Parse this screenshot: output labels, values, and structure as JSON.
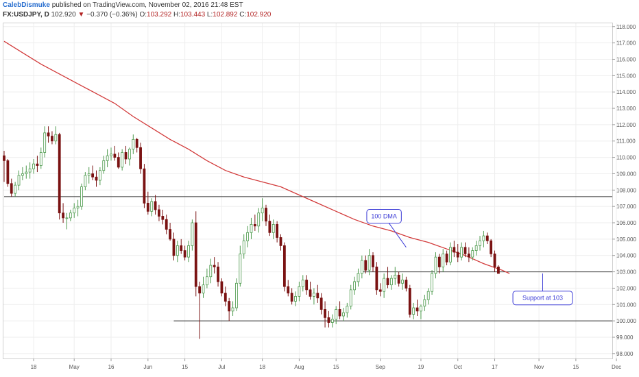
{
  "header": {
    "author": "CalebDismuke",
    "published": "published on TradingView.com, November 02, 2016 21:48 EST",
    "symbol": "FX:USDJPY, D",
    "last": "102.920",
    "change": "−0.370 (−0.36%)",
    "o_label": "O:",
    "o": "103.292",
    "h_label": "H:",
    "h": "103.443",
    "l_label": "L:",
    "l": "102.892",
    "c_label": "C:",
    "c": "102.920"
  },
  "colors": {
    "up": "#4c9a4c",
    "down": "#7a1212",
    "ma": "#d23a3a",
    "annotation": "#3b3bd6",
    "hline": "#333333"
  },
  "chart_data": {
    "type": "candlestick",
    "ylim": [
      97.7,
      118.2
    ],
    "y_ticks": [
      98,
      99,
      100,
      101,
      102,
      103,
      104,
      105,
      106,
      107,
      108,
      109,
      110,
      111,
      112,
      113,
      114,
      115,
      116,
      117,
      118
    ],
    "x_tick_labels": [
      {
        "label": "18",
        "x": 8
      },
      {
        "label": "May",
        "x": 19
      },
      {
        "label": "16",
        "x": 29
      },
      {
        "label": "Jun",
        "x": 39
      },
      {
        "label": "15",
        "x": 49
      },
      {
        "label": "Jul",
        "x": 59
      },
      {
        "label": "18",
        "x": 70
      },
      {
        "label": "Aug",
        "x": 80
      },
      {
        "label": "15",
        "x": 90
      },
      {
        "label": "Sep",
        "x": 102
      },
      {
        "label": "19",
        "x": 113
      },
      {
        "label": "Oct",
        "x": 123
      },
      {
        "label": "17",
        "x": 133
      },
      {
        "label": "Nov",
        "x": 145
      },
      {
        "label": "15",
        "x": 155
      },
      {
        "label": "Dec",
        "x": 166
      }
    ],
    "candles": [
      {
        "o": 110.1,
        "h": 110.4,
        "l": 108.5,
        "c": 109.8
      },
      {
        "o": 109.8,
        "h": 109.9,
        "l": 108.2,
        "c": 108.4
      },
      {
        "o": 108.4,
        "h": 108.7,
        "l": 107.6,
        "c": 107.8
      },
      {
        "o": 107.8,
        "h": 108.5,
        "l": 107.6,
        "c": 108.3
      },
      {
        "o": 108.3,
        "h": 109.2,
        "l": 108.0,
        "c": 108.9
      },
      {
        "o": 108.9,
        "h": 109.4,
        "l": 108.6,
        "c": 109.0
      },
      {
        "o": 109.0,
        "h": 109.5,
        "l": 108.7,
        "c": 109.1
      },
      {
        "o": 109.1,
        "h": 109.7,
        "l": 108.7,
        "c": 109.3
      },
      {
        "o": 109.3,
        "h": 109.9,
        "l": 109.0,
        "c": 109.6
      },
      {
        "o": 109.6,
        "h": 110.1,
        "l": 109.1,
        "c": 109.5
      },
      {
        "o": 109.5,
        "h": 110.6,
        "l": 109.3,
        "c": 110.3
      },
      {
        "o": 110.3,
        "h": 111.9,
        "l": 110.0,
        "c": 111.5
      },
      {
        "o": 111.5,
        "h": 111.9,
        "l": 110.9,
        "c": 111.3
      },
      {
        "o": 111.3,
        "h": 111.6,
        "l": 110.8,
        "c": 111.0
      },
      {
        "o": 111.0,
        "h": 111.9,
        "l": 110.8,
        "c": 111.4
      },
      {
        "o": 111.4,
        "h": 111.5,
        "l": 106.2,
        "c": 106.6
      },
      {
        "o": 106.6,
        "h": 107.2,
        "l": 106.0,
        "c": 106.3
      },
      {
        "o": 106.3,
        "h": 106.6,
        "l": 105.6,
        "c": 106.3
      },
      {
        "o": 106.3,
        "h": 106.8,
        "l": 106.1,
        "c": 106.6
      },
      {
        "o": 106.6,
        "h": 107.2,
        "l": 106.3,
        "c": 106.9
      },
      {
        "o": 106.9,
        "h": 107.4,
        "l": 106.4,
        "c": 107.0
      },
      {
        "o": 107.0,
        "h": 108.4,
        "l": 106.8,
        "c": 108.2
      },
      {
        "o": 108.2,
        "h": 109.1,
        "l": 108.0,
        "c": 108.9
      },
      {
        "o": 108.9,
        "h": 109.4,
        "l": 108.4,
        "c": 109.0
      },
      {
        "o": 109.0,
        "h": 109.5,
        "l": 108.6,
        "c": 108.8
      },
      {
        "o": 108.8,
        "h": 109.2,
        "l": 108.2,
        "c": 108.6
      },
      {
        "o": 108.6,
        "h": 109.4,
        "l": 108.3,
        "c": 109.2
      },
      {
        "o": 109.2,
        "h": 110.1,
        "l": 109.0,
        "c": 109.8
      },
      {
        "o": 109.8,
        "h": 110.5,
        "l": 109.4,
        "c": 110.1
      },
      {
        "o": 110.1,
        "h": 110.6,
        "l": 109.8,
        "c": 110.2
      },
      {
        "o": 110.2,
        "h": 110.7,
        "l": 109.8,
        "c": 110.0
      },
      {
        "o": 110.0,
        "h": 110.3,
        "l": 109.3,
        "c": 109.4
      },
      {
        "o": 109.4,
        "h": 110.5,
        "l": 109.2,
        "c": 110.3
      },
      {
        "o": 110.3,
        "h": 110.7,
        "l": 109.6,
        "c": 109.9
      },
      {
        "o": 109.9,
        "h": 110.6,
        "l": 109.5,
        "c": 110.5
      },
      {
        "o": 110.5,
        "h": 111.4,
        "l": 110.2,
        "c": 111.1
      },
      {
        "o": 111.1,
        "h": 111.2,
        "l": 110.3,
        "c": 110.6
      },
      {
        "o": 110.6,
        "h": 110.9,
        "l": 109.0,
        "c": 109.3
      },
      {
        "o": 109.3,
        "h": 109.6,
        "l": 106.9,
        "c": 107.2
      },
      {
        "o": 107.2,
        "h": 107.9,
        "l": 106.5,
        "c": 106.7
      },
      {
        "o": 106.7,
        "h": 107.5,
        "l": 106.4,
        "c": 107.3
      },
      {
        "o": 107.3,
        "h": 107.7,
        "l": 106.5,
        "c": 106.8
      },
      {
        "o": 106.8,
        "h": 107.1,
        "l": 106.1,
        "c": 106.4
      },
      {
        "o": 106.4,
        "h": 106.8,
        "l": 105.9,
        "c": 106.2
      },
      {
        "o": 106.2,
        "h": 106.5,
        "l": 105.3,
        "c": 105.6
      },
      {
        "o": 105.6,
        "h": 106.0,
        "l": 104.9,
        "c": 105.0
      },
      {
        "o": 105.0,
        "h": 105.4,
        "l": 103.7,
        "c": 104.0
      },
      {
        "o": 104.0,
        "h": 104.9,
        "l": 103.6,
        "c": 104.6
      },
      {
        "o": 104.6,
        "h": 105.0,
        "l": 104.1,
        "c": 104.3
      },
      {
        "o": 104.3,
        "h": 104.6,
        "l": 103.7,
        "c": 103.9
      },
      {
        "o": 103.9,
        "h": 104.9,
        "l": 103.6,
        "c": 104.6
      },
      {
        "o": 104.6,
        "h": 106.2,
        "l": 104.3,
        "c": 106.0
      },
      {
        "o": 106.0,
        "h": 106.7,
        "l": 101.5,
        "c": 102.1
      },
      {
        "o": 102.1,
        "h": 102.4,
        "l": 98.9,
        "c": 101.7
      },
      {
        "o": 101.7,
        "h": 102.7,
        "l": 101.4,
        "c": 102.2
      },
      {
        "o": 102.2,
        "h": 103.2,
        "l": 102.0,
        "c": 102.7
      },
      {
        "o": 102.7,
        "h": 103.8,
        "l": 102.3,
        "c": 103.4
      },
      {
        "o": 103.4,
        "h": 103.9,
        "l": 102.9,
        "c": 103.3
      },
      {
        "o": 103.3,
        "h": 103.6,
        "l": 102.1,
        "c": 102.4
      },
      {
        "o": 102.4,
        "h": 102.6,
        "l": 101.5,
        "c": 101.7
      },
      {
        "o": 101.7,
        "h": 102.1,
        "l": 100.9,
        "c": 101.2
      },
      {
        "o": 101.2,
        "h": 101.4,
        "l": 100.0,
        "c": 100.6
      },
      {
        "o": 100.6,
        "h": 101.2,
        "l": 100.3,
        "c": 100.8
      },
      {
        "o": 100.8,
        "h": 102.6,
        "l": 100.6,
        "c": 102.3
      },
      {
        "o": 102.3,
        "h": 104.6,
        "l": 102.1,
        "c": 104.1
      },
      {
        "o": 104.1,
        "h": 105.3,
        "l": 103.8,
        "c": 104.9
      },
      {
        "o": 104.9,
        "h": 105.8,
        "l": 104.5,
        "c": 105.4
      },
      {
        "o": 105.4,
        "h": 106.3,
        "l": 105.0,
        "c": 105.9
      },
      {
        "o": 105.9,
        "h": 106.5,
        "l": 105.5,
        "c": 105.8
      },
      {
        "o": 105.8,
        "h": 106.9,
        "l": 105.4,
        "c": 106.6
      },
      {
        "o": 106.6,
        "h": 107.5,
        "l": 106.1,
        "c": 106.9
      },
      {
        "o": 106.9,
        "h": 107.1,
        "l": 105.8,
        "c": 106.1
      },
      {
        "o": 106.1,
        "h": 106.5,
        "l": 105.2,
        "c": 105.4
      },
      {
        "o": 105.4,
        "h": 106.2,
        "l": 105.0,
        "c": 105.9
      },
      {
        "o": 105.9,
        "h": 106.1,
        "l": 104.8,
        "c": 105.1
      },
      {
        "o": 105.1,
        "h": 105.3,
        "l": 104.3,
        "c": 104.6
      },
      {
        "o": 104.6,
        "h": 104.8,
        "l": 101.8,
        "c": 102.1
      },
      {
        "o": 102.1,
        "h": 102.5,
        "l": 101.5,
        "c": 101.7
      },
      {
        "o": 101.7,
        "h": 102.0,
        "l": 101.0,
        "c": 101.2
      },
      {
        "o": 101.2,
        "h": 101.8,
        "l": 100.9,
        "c": 101.5
      },
      {
        "o": 101.5,
        "h": 102.4,
        "l": 101.2,
        "c": 102.1
      },
      {
        "o": 102.1,
        "h": 102.8,
        "l": 101.8,
        "c": 102.5
      },
      {
        "o": 102.5,
        "h": 102.8,
        "l": 101.6,
        "c": 101.9
      },
      {
        "o": 101.9,
        "h": 102.4,
        "l": 101.3,
        "c": 101.5
      },
      {
        "o": 101.5,
        "h": 102.0,
        "l": 101.0,
        "c": 101.7
      },
      {
        "o": 101.7,
        "h": 102.2,
        "l": 101.1,
        "c": 101.4
      },
      {
        "o": 101.4,
        "h": 101.7,
        "l": 100.4,
        "c": 100.7
      },
      {
        "o": 100.7,
        "h": 101.2,
        "l": 99.6,
        "c": 100.2
      },
      {
        "o": 100.2,
        "h": 100.6,
        "l": 99.6,
        "c": 99.9
      },
      {
        "o": 99.9,
        "h": 100.4,
        "l": 99.6,
        "c": 100.1
      },
      {
        "o": 100.1,
        "h": 100.9,
        "l": 99.8,
        "c": 100.7
      },
      {
        "o": 100.7,
        "h": 101.2,
        "l": 100.1,
        "c": 100.3
      },
      {
        "o": 100.3,
        "h": 100.8,
        "l": 100.0,
        "c": 100.5
      },
      {
        "o": 100.5,
        "h": 101.1,
        "l": 100.2,
        "c": 100.9
      },
      {
        "o": 100.9,
        "h": 102.2,
        "l": 100.7,
        "c": 101.9
      },
      {
        "o": 101.9,
        "h": 102.7,
        "l": 101.6,
        "c": 102.4
      },
      {
        "o": 102.4,
        "h": 103.2,
        "l": 102.1,
        "c": 102.9
      },
      {
        "o": 102.9,
        "h": 104.0,
        "l": 102.6,
        "c": 103.7
      },
      {
        "o": 103.7,
        "h": 104.0,
        "l": 102.9,
        "c": 103.1
      },
      {
        "o": 103.1,
        "h": 104.4,
        "l": 102.8,
        "c": 104.0
      },
      {
        "o": 104.0,
        "h": 104.2,
        "l": 103.0,
        "c": 103.3
      },
      {
        "o": 103.3,
        "h": 103.6,
        "l": 101.6,
        "c": 101.9
      },
      {
        "o": 101.9,
        "h": 102.3,
        "l": 101.5,
        "c": 101.8
      },
      {
        "o": 101.8,
        "h": 102.9,
        "l": 101.4,
        "c": 102.6
      },
      {
        "o": 102.6,
        "h": 103.3,
        "l": 102.0,
        "c": 102.2
      },
      {
        "o": 102.2,
        "h": 102.8,
        "l": 101.9,
        "c": 102.6
      },
      {
        "o": 102.6,
        "h": 103.3,
        "l": 102.2,
        "c": 102.8
      },
      {
        "o": 102.8,
        "h": 103.0,
        "l": 102.1,
        "c": 102.3
      },
      {
        "o": 102.3,
        "h": 102.9,
        "l": 101.9,
        "c": 102.5
      },
      {
        "o": 102.5,
        "h": 102.7,
        "l": 101.8,
        "c": 102.0
      },
      {
        "o": 102.0,
        "h": 102.2,
        "l": 100.2,
        "c": 100.4
      },
      {
        "o": 100.4,
        "h": 101.1,
        "l": 100.1,
        "c": 100.8
      },
      {
        "o": 100.8,
        "h": 101.3,
        "l": 100.3,
        "c": 100.6
      },
      {
        "o": 100.6,
        "h": 101.0,
        "l": 100.1,
        "c": 100.9
      },
      {
        "o": 100.9,
        "h": 101.6,
        "l": 100.6,
        "c": 101.3
      },
      {
        "o": 101.3,
        "h": 102.0,
        "l": 101.0,
        "c": 101.8
      },
      {
        "o": 101.8,
        "h": 103.1,
        "l": 101.6,
        "c": 102.9
      },
      {
        "o": 102.9,
        "h": 104.2,
        "l": 102.6,
        "c": 103.9
      },
      {
        "o": 103.9,
        "h": 104.1,
        "l": 102.9,
        "c": 103.3
      },
      {
        "o": 103.3,
        "h": 104.4,
        "l": 103.0,
        "c": 104.1
      },
      {
        "o": 104.1,
        "h": 104.3,
        "l": 103.4,
        "c": 103.6
      },
      {
        "o": 103.6,
        "h": 104.8,
        "l": 103.4,
        "c": 104.5
      },
      {
        "o": 104.5,
        "h": 104.9,
        "l": 103.9,
        "c": 104.2
      },
      {
        "o": 104.2,
        "h": 104.7,
        "l": 103.6,
        "c": 103.9
      },
      {
        "o": 103.9,
        "h": 104.8,
        "l": 103.7,
        "c": 104.5
      },
      {
        "o": 104.5,
        "h": 104.8,
        "l": 103.9,
        "c": 104.1
      },
      {
        "o": 104.1,
        "h": 104.5,
        "l": 103.6,
        "c": 103.9
      },
      {
        "o": 103.9,
        "h": 104.5,
        "l": 103.7,
        "c": 104.3
      },
      {
        "o": 104.3,
        "h": 104.9,
        "l": 104.0,
        "c": 104.6
      },
      {
        "o": 104.6,
        "h": 105.2,
        "l": 104.3,
        "c": 104.9
      },
      {
        "o": 104.9,
        "h": 105.5,
        "l": 104.5,
        "c": 105.2
      },
      {
        "o": 105.2,
        "h": 105.4,
        "l": 104.7,
        "c": 104.9
      },
      {
        "o": 104.9,
        "h": 105.0,
        "l": 103.9,
        "c": 104.1
      },
      {
        "o": 104.1,
        "h": 104.3,
        "l": 103.0,
        "c": 103.3
      },
      {
        "o": 103.3,
        "h": 103.4,
        "l": 102.9,
        "c": 102.9
      }
    ],
    "ma100": [
      {
        "x": 0,
        "y": 117.1
      },
      {
        "x": 5,
        "y": 116.4
      },
      {
        "x": 10,
        "y": 115.7
      },
      {
        "x": 15,
        "y": 115.1
      },
      {
        "x": 20,
        "y": 114.5
      },
      {
        "x": 25,
        "y": 113.9
      },
      {
        "x": 30,
        "y": 113.3
      },
      {
        "x": 35,
        "y": 112.5
      },
      {
        "x": 40,
        "y": 111.8
      },
      {
        "x": 45,
        "y": 111.1
      },
      {
        "x": 50,
        "y": 110.5
      },
      {
        "x": 55,
        "y": 109.8
      },
      {
        "x": 60,
        "y": 109.2
      },
      {
        "x": 65,
        "y": 108.8
      },
      {
        "x": 70,
        "y": 108.5
      },
      {
        "x": 75,
        "y": 108.2
      },
      {
        "x": 80,
        "y": 107.7
      },
      {
        "x": 85,
        "y": 107.2
      },
      {
        "x": 90,
        "y": 106.7
      },
      {
        "x": 95,
        "y": 106.2
      },
      {
        "x": 100,
        "y": 105.8
      },
      {
        "x": 105,
        "y": 105.5
      },
      {
        "x": 110,
        "y": 105.1
      },
      {
        "x": 115,
        "y": 104.8
      },
      {
        "x": 120,
        "y": 104.4
      },
      {
        "x": 125,
        "y": 104.0
      },
      {
        "x": 130,
        "y": 103.5
      },
      {
        "x": 135,
        "y": 103.1
      },
      {
        "x": 137,
        "y": 102.9
      }
    ],
    "hlines": [
      {
        "y": 107.6,
        "x_start": 0,
        "x_end": 170
      },
      {
        "y": 103.0,
        "x_start": 97,
        "x_end": 170
      },
      {
        "y": 100.0,
        "x_start": 46,
        "x_end": 170
      }
    ],
    "annotations": [
      {
        "text": "100 DMA",
        "box_x": 103,
        "box_y": 106.4,
        "tip_x": 109,
        "tip_y": 104.5
      },
      {
        "text": "Support at 103",
        "box_x": 146,
        "box_y": 101.4,
        "tip_x": 146,
        "tip_y": 102.9
      }
    ]
  }
}
